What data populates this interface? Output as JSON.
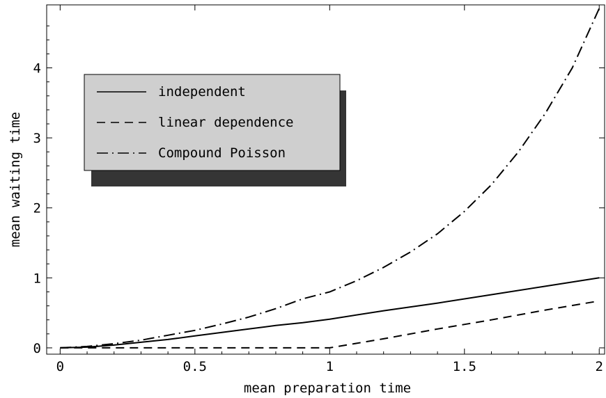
{
  "chart_data": {
    "type": "line",
    "xlabel": "mean preparation time",
    "ylabel": "mean waiting time",
    "xlim": [
      -0.05,
      2.02
    ],
    "ylim": [
      -0.09,
      4.9
    ],
    "xticks": [
      {
        "value": 0,
        "label": "0"
      },
      {
        "value": 0.5,
        "label": "0.5"
      },
      {
        "value": 1,
        "label": "1"
      },
      {
        "value": 1.5,
        "label": "1.5"
      },
      {
        "value": 2,
        "label": "2"
      }
    ],
    "yticks": [
      {
        "value": 0,
        "label": "0"
      },
      {
        "value": 1,
        "label": "1"
      },
      {
        "value": 2,
        "label": "2"
      },
      {
        "value": 3,
        "label": "3"
      },
      {
        "value": 4,
        "label": "4"
      }
    ],
    "grid": false,
    "legend_position": "top-left",
    "series": [
      {
        "name": "independent",
        "style": "solid",
        "x": [
          0,
          0.1,
          0.2,
          0.3,
          0.4,
          0.5,
          0.6,
          0.7,
          0.8,
          0.9,
          1.0,
          1.2,
          1.4,
          1.6,
          1.8,
          2.0
        ],
        "y": [
          0,
          0.01,
          0.04,
          0.08,
          0.12,
          0.17,
          0.22,
          0.27,
          0.32,
          0.36,
          0.41,
          0.53,
          0.64,
          0.76,
          0.88,
          1.0
        ]
      },
      {
        "name": "linear dependence",
        "style": "dashed",
        "x": [
          0,
          0.2,
          0.4,
          0.6,
          0.8,
          1.0,
          1.2,
          1.4,
          1.6,
          1.8,
          2.0
        ],
        "y": [
          0,
          0,
          0,
          0,
          0,
          0,
          0.13,
          0.27,
          0.4,
          0.54,
          0.67
        ]
      },
      {
        "name": "Compound Poisson",
        "style": "dashdot",
        "x": [
          0,
          0.1,
          0.2,
          0.3,
          0.4,
          0.5,
          0.6,
          0.7,
          0.8,
          0.9,
          1.0,
          1.1,
          1.2,
          1.3,
          1.4,
          1.5,
          1.6,
          1.7,
          1.8,
          1.9,
          2.0
        ],
        "y": [
          0,
          0.02,
          0.06,
          0.11,
          0.18,
          0.25,
          0.34,
          0.44,
          0.56,
          0.7,
          0.8,
          0.96,
          1.15,
          1.37,
          1.63,
          1.95,
          2.33,
          2.8,
          3.35,
          4.0,
          4.85
        ]
      }
    ]
  }
}
